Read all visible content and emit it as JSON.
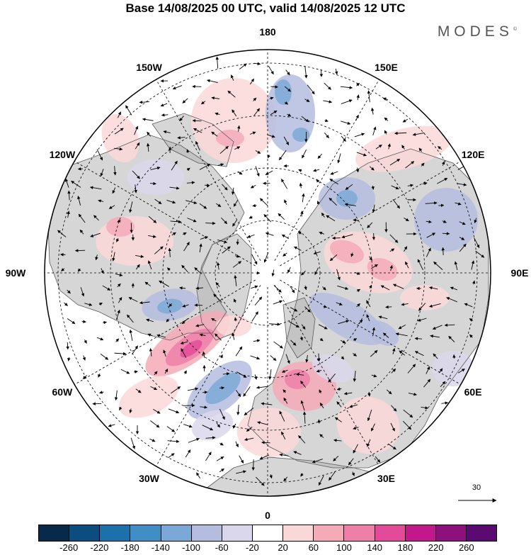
{
  "title": "Base 14/08/2025 00 UTC, valid 14/08/2025 12 UTC",
  "brand": "MODES",
  "brand_mark": "©",
  "longitude_labels": [
    "180",
    "150E",
    "120E",
    "90E",
    "60E",
    "30E",
    "0",
    "30W",
    "60W",
    "90W",
    "120W",
    "150W"
  ],
  "vector_scale_value": "30",
  "colorbar": {
    "ticks": [
      "-260",
      "-220",
      "-180",
      "-140",
      "-100",
      "-60",
      "-20",
      "20",
      "60",
      "100",
      "140",
      "180",
      "220",
      "260"
    ],
    "colors": [
      "#08294a",
      "#0b4d7f",
      "#1c71ad",
      "#3f8fc6",
      "#7ba9d7",
      "#b5bddf",
      "#dad7ec",
      "#ffffff",
      "#fbd8d8",
      "#f5aab8",
      "#ef7fa8",
      "#e34b9a",
      "#c2188c",
      "#8e0f7e",
      "#5a0a70"
    ]
  },
  "anomaly_colors": {
    "land": "#b5b5b5",
    "ocean": "#ffffff",
    "grid": "#000000",
    "coast": "#5a5a5a"
  }
}
